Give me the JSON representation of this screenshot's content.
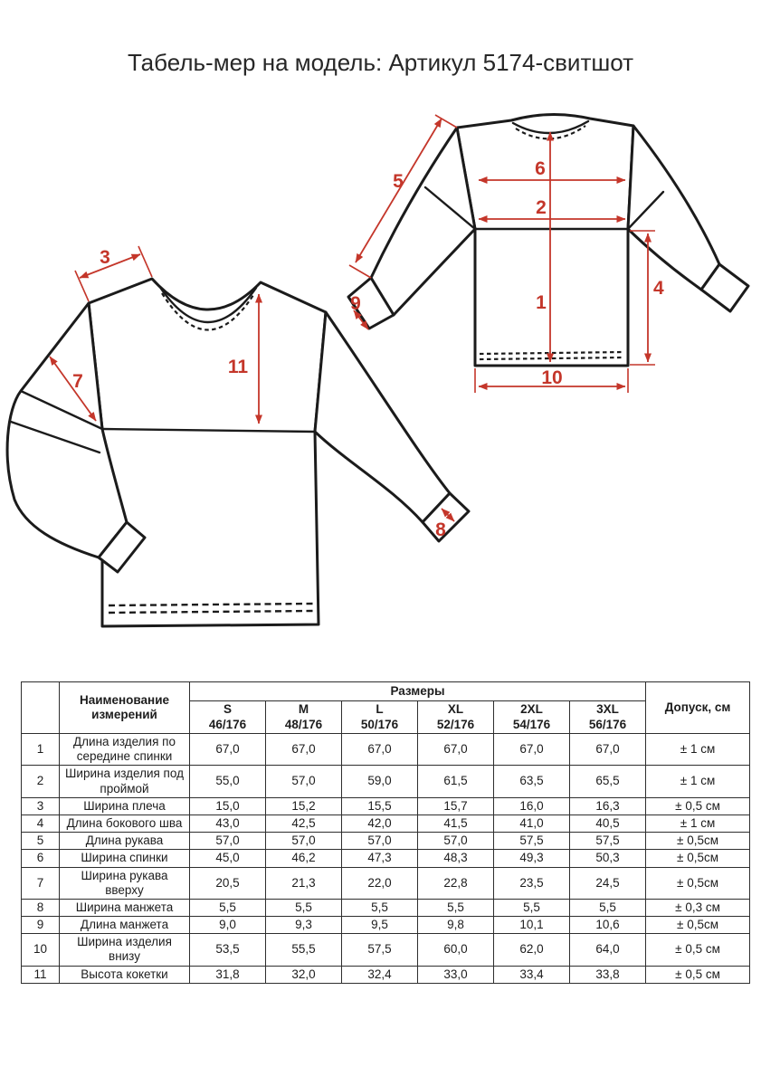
{
  "title": "Табель-мер на модель: Артикул 5174-свитшот",
  "colors": {
    "dimension_red": "#c4362a",
    "garment_line": "#1b1b1b",
    "table_border": "#2e2e2e"
  },
  "diagrams": {
    "front_view": {
      "description": "sweatshirt front view with yoke",
      "dims": {
        "d3": "3",
        "d7": "7",
        "d11": "11",
        "d8": "8"
      }
    },
    "back_view": {
      "description": "sweatshirt back view",
      "dims": {
        "d5": "5",
        "d6": "6",
        "d2": "2",
        "d9": "9",
        "d1": "1",
        "d4": "4",
        "d10": "10"
      }
    }
  },
  "table": {
    "header": {
      "number_col": "",
      "name_col": "Наименование измерений",
      "sizes_group": "Размеры",
      "tolerance_col": "Допуск, см",
      "sizes": [
        {
          "label": "S",
          "height": "46/176"
        },
        {
          "label": "M",
          "height": "48/176"
        },
        {
          "label": "L",
          "height": "50/176"
        },
        {
          "label": "XL",
          "height": "52/176"
        },
        {
          "label": "2XL",
          "height": "54/176"
        },
        {
          "label": "3XL",
          "height": "56/176"
        }
      ]
    },
    "rows": [
      {
        "num": "1",
        "name": "Длина изделия по середине спинки",
        "values": [
          "67,0",
          "67,0",
          "67,0",
          "67,0",
          "67,0",
          "67,0"
        ],
        "tolerance": "± 1 см"
      },
      {
        "num": "2",
        "name": "Ширина изделия под проймой",
        "values": [
          "55,0",
          "57,0",
          "59,0",
          "61,5",
          "63,5",
          "65,5"
        ],
        "tolerance": "± 1 см"
      },
      {
        "num": "3",
        "name": "Ширина плеча",
        "values": [
          "15,0",
          "15,2",
          "15,5",
          "15,7",
          "16,0",
          "16,3"
        ],
        "tolerance": "± 0,5 см"
      },
      {
        "num": "4",
        "name": "Длина бокового шва",
        "values": [
          "43,0",
          "42,5",
          "42,0",
          "41,5",
          "41,0",
          "40,5"
        ],
        "tolerance": "± 1 см"
      },
      {
        "num": "5",
        "name": "Длина рукава",
        "values": [
          "57,0",
          "57,0",
          "57,0",
          "57,0",
          "57,5",
          "57,5"
        ],
        "tolerance": "± 0,5см"
      },
      {
        "num": "6",
        "name": "Ширина спинки",
        "values": [
          "45,0",
          "46,2",
          "47,3",
          "48,3",
          "49,3",
          "50,3"
        ],
        "tolerance": "± 0,5см"
      },
      {
        "num": "7",
        "name": "Ширина рукава вверху",
        "values": [
          "20,5",
          "21,3",
          "22,0",
          "22,8",
          "23,5",
          "24,5"
        ],
        "tolerance": "± 0,5см"
      },
      {
        "num": "8",
        "name": "Ширина манжета",
        "values": [
          "5,5",
          "5,5",
          "5,5",
          "5,5",
          "5,5",
          "5,5"
        ],
        "tolerance": "± 0,3 см"
      },
      {
        "num": "9",
        "name": "Длина манжета",
        "values": [
          "9,0",
          "9,3",
          "9,5",
          "9,8",
          "10,1",
          "10,6"
        ],
        "tolerance": "± 0,5см"
      },
      {
        "num": "10",
        "name": "Ширина изделия внизу",
        "values": [
          "53,5",
          "55,5",
          "57,5",
          "60,0",
          "62,0",
          "64,0"
        ],
        "tolerance": "± 0,5 см"
      },
      {
        "num": "11",
        "name": "Высота кокетки",
        "values": [
          "31,8",
          "32,0",
          "32,4",
          "33,0",
          "33,4",
          "33,8"
        ],
        "tolerance": "± 0,5 см"
      }
    ]
  }
}
